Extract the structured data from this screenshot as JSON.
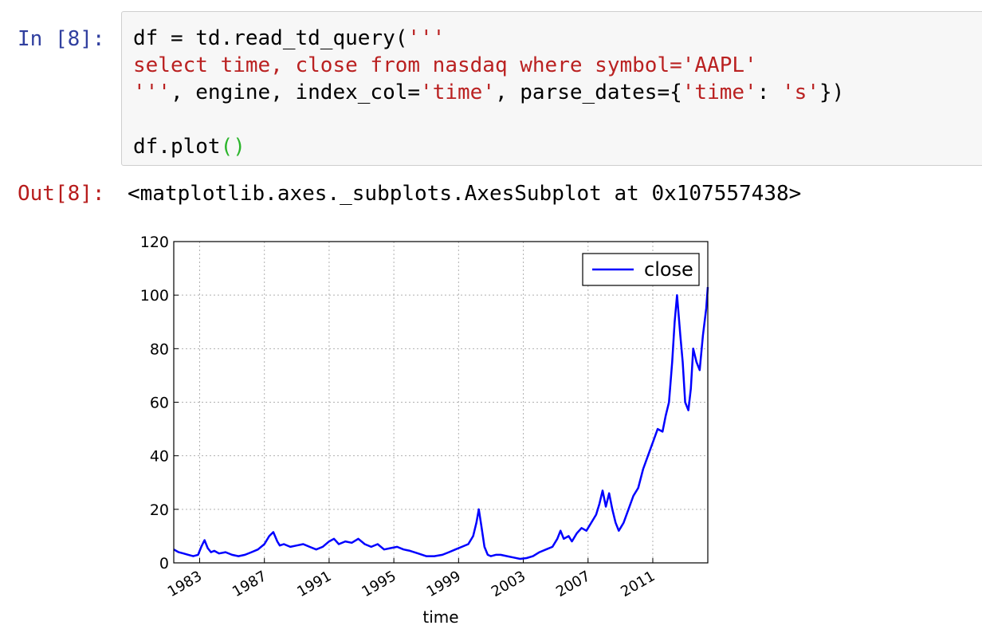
{
  "cell": {
    "in_prompt": "In [8]:",
    "out_prompt": "Out[8]:",
    "code": {
      "l1_a": "df = td.read_td_query(",
      "l1_b": "'''",
      "l2": "select time, close from nasdaq where symbol='AAPL'",
      "l3_a": "'''",
      "l3_b": ", engine, index_col=",
      "l3_c": "'time'",
      "l3_d": ", parse_dates={",
      "l3_e": "'time'",
      "l3_f": ": ",
      "l3_g": "'s'",
      "l3_h": "})",
      "l5_a": "df.plot",
      "l5_b": "()"
    },
    "output_text": "<matplotlib.axes._subplots.AxesSubplot at 0x107557438>"
  },
  "colors": {
    "series": "#0000ff",
    "string": "#ba2121",
    "in_prompt": "#303f9f",
    "out_prompt": "#b71c1c",
    "paren": "#2bb52b"
  },
  "chart_data": {
    "type": "line",
    "xlabel": "time",
    "ylabel": "",
    "x_tick_labels": [
      "1983",
      "1987",
      "1991",
      "1995",
      "1999",
      "2003",
      "2007",
      "2011"
    ],
    "y_tick_labels": [
      "0",
      "20",
      "40",
      "60",
      "80",
      "100",
      "120"
    ],
    "ylim": [
      0,
      120
    ],
    "xlim": [
      1981.4,
      2014.4
    ],
    "grid": true,
    "legend_position": "top-right",
    "series": [
      {
        "name": "close",
        "x": [
          1981.4,
          1981.7,
          1982.0,
          1982.3,
          1982.6,
          1982.9,
          1983.1,
          1983.3,
          1983.5,
          1983.7,
          1983.9,
          1984.2,
          1984.6,
          1985.0,
          1985.4,
          1985.8,
          1986.2,
          1986.6,
          1987.0,
          1987.3,
          1987.55,
          1987.8,
          1987.95,
          1988.2,
          1988.6,
          1989.0,
          1989.4,
          1989.8,
          1990.2,
          1990.6,
          1991.0,
          1991.3,
          1991.6,
          1992.0,
          1992.4,
          1992.8,
          1993.2,
          1993.6,
          1994.0,
          1994.4,
          1994.8,
          1995.2,
          1995.6,
          1996.0,
          1996.5,
          1997.0,
          1997.5,
          1998.0,
          1998.4,
          1998.8,
          1999.2,
          1999.6,
          1999.9,
          2000.1,
          2000.25,
          2000.4,
          2000.6,
          2000.8,
          2001.0,
          2001.3,
          2001.6,
          2002.0,
          2002.4,
          2002.8,
          2003.2,
          2003.6,
          2004.0,
          2004.4,
          2004.8,
          2005.1,
          2005.3,
          2005.5,
          2005.8,
          2006.0,
          2006.3,
          2006.6,
          2006.9,
          2007.2,
          2007.5,
          2007.7,
          2007.9,
          2008.1,
          2008.3,
          2008.5,
          2008.7,
          2008.9,
          2009.0,
          2009.2,
          2009.5,
          2009.8,
          2010.1,
          2010.4,
          2010.7,
          2011.0,
          2011.3,
          2011.6,
          2011.8,
          2012.0,
          2012.2,
          2012.35,
          2012.5,
          2012.7,
          2012.85,
          2013.0,
          2013.2,
          2013.35,
          2013.5,
          2013.7,
          2013.9,
          2014.1,
          2014.3,
          2014.4
        ],
        "y": [
          5,
          4,
          3.5,
          3,
          2.5,
          3,
          6,
          8.5,
          5.5,
          4,
          4.5,
          3.5,
          4,
          3,
          2.5,
          3,
          4,
          5,
          7,
          10,
          11.5,
          8,
          6.5,
          7,
          6,
          6.5,
          7,
          6,
          5,
          6,
          8,
          9,
          7,
          8,
          7.5,
          9,
          7,
          6,
          7,
          5,
          5.5,
          6,
          5,
          4.5,
          3.5,
          2.5,
          2.5,
          3,
          4,
          5,
          6,
          7,
          10,
          15,
          20,
          14,
          6,
          3,
          2.5,
          3,
          3,
          2.5,
          2,
          1.5,
          1.8,
          2.5,
          4,
          5,
          6,
          9,
          12,
          9,
          10,
          8,
          11,
          13,
          12,
          15,
          18,
          22,
          27,
          21,
          26,
          20,
          15,
          12,
          13,
          15,
          20,
          25,
          28,
          35,
          40,
          45,
          50,
          49,
          55,
          60,
          75,
          90,
          100,
          85,
          75,
          60,
          57,
          65,
          80,
          75,
          72,
          85,
          95,
          103
        ]
      }
    ]
  }
}
